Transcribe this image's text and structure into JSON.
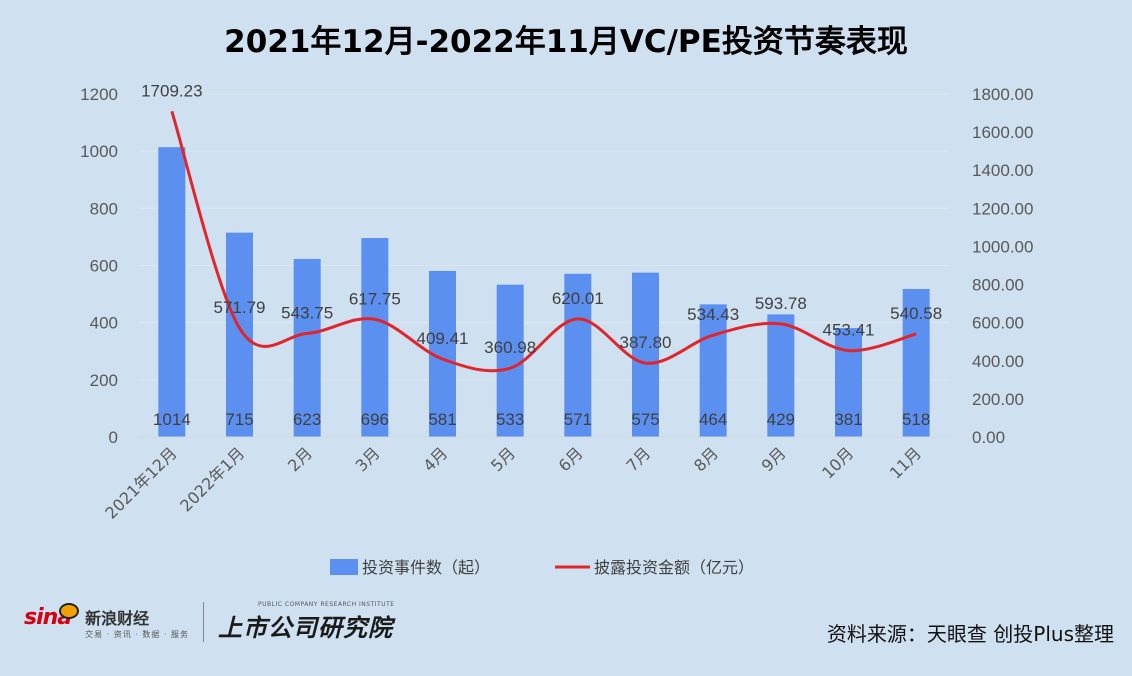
{
  "chart_data": {
    "type": "bar",
    "title": "2021年12月-2022年11月VC/PE投资节奏表现",
    "categories": [
      "2021年12月",
      "2022年1月",
      "2月",
      "3月",
      "4月",
      "5月",
      "6月",
      "7月",
      "8月",
      "9月",
      "10月",
      "11月"
    ],
    "series": [
      {
        "name": "投资事件数（起）",
        "type": "bar",
        "axis": "left",
        "color": "#5b8ff0",
        "values": [
          1014,
          715,
          623,
          696,
          581,
          533,
          571,
          575,
          464,
          429,
          381,
          518
        ],
        "labels": [
          "1014",
          "715",
          "623",
          "696",
          "581",
          "533",
          "571",
          "575",
          "464",
          "429",
          "381",
          "518"
        ]
      },
      {
        "name": "披露投资金额（亿元）",
        "type": "line",
        "axis": "right",
        "color": "#e0252b",
        "values": [
          1709.23,
          571.79,
          543.75,
          617.75,
          409.41,
          360.98,
          620.01,
          387.8,
          534.43,
          593.78,
          453.41,
          540.58
        ],
        "labels": [
          "1709.23",
          "571.79",
          "543.75",
          "617.75",
          "409.41",
          "360.98",
          "620.01",
          "387.80",
          "534.43",
          "593.78",
          "453.41",
          "540.58"
        ]
      }
    ],
    "y_left": {
      "min": 0,
      "max": 1200,
      "ticks": [
        "0",
        "200",
        "400",
        "600",
        "800",
        "1000",
        "1200"
      ]
    },
    "y_right": {
      "min": 0,
      "max": 1800,
      "ticks": [
        "0.00",
        "200.00",
        "400.00",
        "600.00",
        "800.00",
        "1000.00",
        "1200.00",
        "1400.00",
        "1600.00",
        "1800.00"
      ]
    },
    "grid": true,
    "legend_position": "bottom"
  },
  "footer": {
    "sina_word": "sina",
    "sina_name": "新浪财经",
    "sina_sub": "交易 · 资讯 · 数据 · 服务",
    "research_en": "PUBLIC COMPANY RESEARCH INSTITUTE",
    "research_cn": "上市公司研究院",
    "source": "资料来源：天眼查 创投Plus整理"
  }
}
